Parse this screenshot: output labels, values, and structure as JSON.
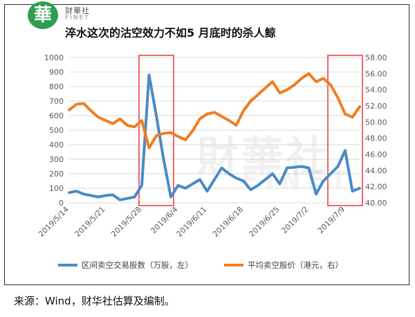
{
  "header": {
    "logo_char": "華",
    "brand_cn": "财華社",
    "brand_en": "FINET",
    "title": "淬水这次的沽空效力不如5 月底时的杀人鲸"
  },
  "footer": {
    "source": "来源：Wind，财华社估算及编制。"
  },
  "watermark": {
    "cn": "財華社",
    "en": "FINET"
  },
  "chart_data": {
    "type": "line",
    "dates": [
      "2019/5/14",
      "2019/5/15",
      "2019/5/16",
      "2019/5/17",
      "2019/5/20",
      "2019/5/21",
      "2019/5/22",
      "2019/5/23",
      "2019/5/24",
      "2019/5/27",
      "2019/5/28",
      "2019/5/29",
      "2019/5/30",
      "2019/5/31",
      "2019/6/3",
      "2019/6/4",
      "2019/6/5",
      "2019/6/6",
      "2019/6/10",
      "2019/6/11",
      "2019/6/12",
      "2019/6/13",
      "2019/6/14",
      "2019/6/17",
      "2019/6/18",
      "2019/6/19",
      "2019/6/20",
      "2019/6/21",
      "2019/6/24",
      "2019/6/25",
      "2019/6/26",
      "2019/6/27",
      "2019/6/28",
      "2019/7/2",
      "2019/7/3",
      "2019/7/4",
      "2019/7/5",
      "2019/7/8",
      "2019/7/9",
      "2019/7/10",
      "2019/7/11"
    ],
    "x_tick_labels": [
      "2019/5/14",
      "2019/5/21",
      "2019/5/28",
      "2019/6/4",
      "2019/6/11",
      "2019/6/18",
      "2019/6/25",
      "2019/7/2",
      "2019/7/9"
    ],
    "series": [
      {
        "name": "区间卖空交易股数（万股，左）",
        "axis": "left",
        "color": "#4a8ac6",
        "values": [
          70,
          80,
          60,
          50,
          40,
          50,
          55,
          20,
          30,
          40,
          120,
          880,
          600,
          300,
          40,
          120,
          100,
          130,
          160,
          80,
          160,
          240,
          200,
          170,
          150,
          90,
          120,
          160,
          200,
          130,
          240,
          245,
          250,
          240,
          60,
          150,
          200,
          250,
          360,
          80,
          100
        ]
      },
      {
        "name": "平均卖空股价（港元，右）",
        "axis": "right",
        "color": "#ef7d22",
        "values": [
          51.5,
          52.2,
          52.3,
          51.4,
          50.6,
          50.2,
          49.8,
          50.4,
          49.6,
          49.4,
          50.2,
          46.8,
          48.3,
          48.6,
          48.7,
          48.2,
          47.8,
          48.9,
          50.4,
          51.0,
          51.2,
          50.7,
          50.2,
          49.6,
          51.4,
          52.6,
          53.4,
          54.2,
          55.0,
          53.6,
          54.0,
          54.6,
          55.4,
          56.0,
          55.0,
          55.4,
          54.6,
          53.0,
          51.0,
          50.6,
          51.9
        ]
      }
    ],
    "left_axis": {
      "min": 0,
      "max": 1000,
      "step": 100,
      "ticks": [
        "0",
        "100",
        "200",
        "300",
        "400",
        "500",
        "600",
        "700",
        "800",
        "900",
        "1000"
      ]
    },
    "right_axis": {
      "min": 40,
      "max": 58,
      "step": 2,
      "ticks": [
        "40.00",
        "42.00",
        "44.00",
        "46.00",
        "48.00",
        "50.00",
        "52.00",
        "54.00",
        "56.00",
        "58.00"
      ]
    },
    "highlight_ranges": [
      {
        "from": "2019/5/28",
        "to": "2019/6/3",
        "color": "#e8343a"
      },
      {
        "from": "2019/7/5",
        "to": "2019/7/11",
        "color": "#e8343a"
      }
    ],
    "grid": true,
    "legend_position": "bottom"
  }
}
